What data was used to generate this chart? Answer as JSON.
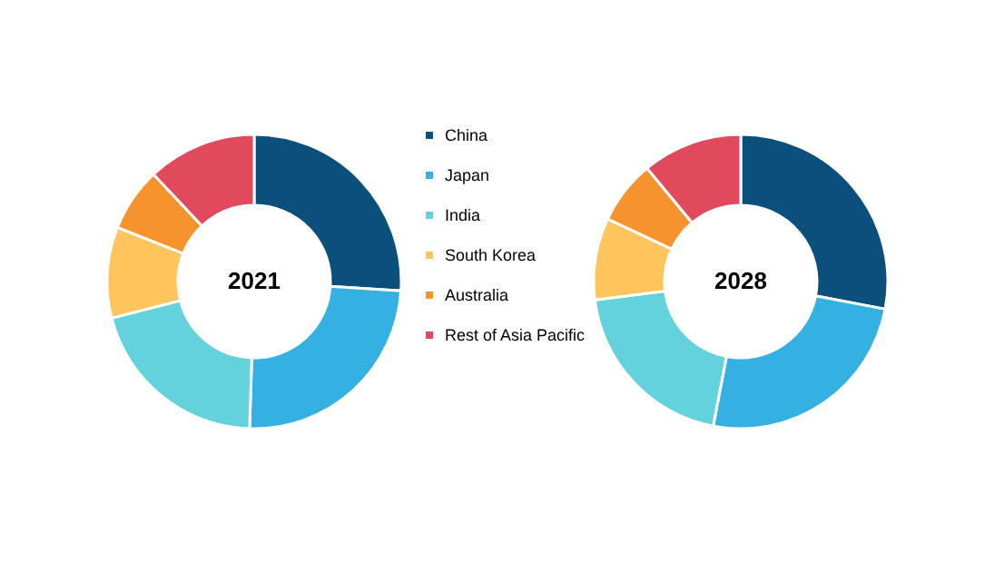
{
  "chart_data": [
    {
      "type": "donut",
      "title": "2021",
      "categories": [
        "China",
        "Japan",
        "India",
        "South Korea",
        "Australia",
        "Rest of Asia Pacific"
      ],
      "values": [
        26,
        24.5,
        20.5,
        10,
        7,
        12
      ],
      "colors": [
        "#0b4f7c",
        "#35b0e2",
        "#64d2dc",
        "#fec55c",
        "#f7932c",
        "#e04a5c"
      ],
      "legend": "right"
    },
    {
      "type": "donut",
      "title": "2028",
      "categories": [
        null,
        null,
        null,
        null,
        null,
        null
      ],
      "values": [
        28,
        25,
        20,
        9,
        7,
        11
      ],
      "colors": [
        "#0b4f7c",
        "#35b0e2",
        "#64d2dc",
        "#fec55c",
        "#f7932c",
        "#e04a5c"
      ]
    }
  ]
}
